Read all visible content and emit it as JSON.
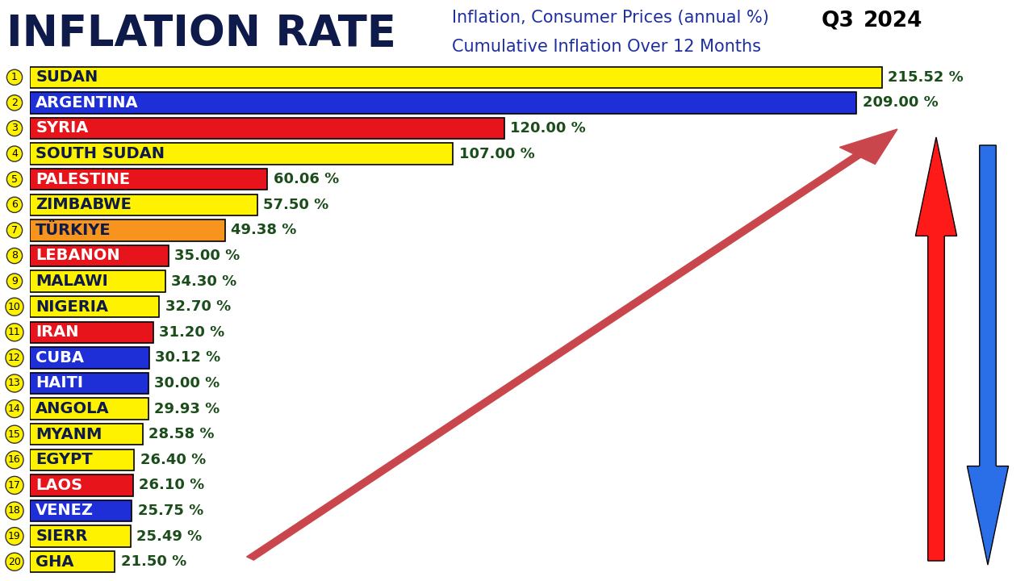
{
  "chart_data": {
    "type": "bar",
    "orientation": "horizontal",
    "title": "INFLATION RATE",
    "subtitle": [
      "Inflation, Consumer Prices (annual %)",
      "Cumulative Inflation Over 12 Months"
    ],
    "period": "Q3",
    "year": "2024",
    "ranks": [
      1,
      2,
      3,
      4,
      5,
      6,
      7,
      8,
      9,
      10,
      11,
      12,
      13,
      14,
      15,
      16,
      17,
      18,
      19,
      20
    ],
    "categories": [
      "SUDAN",
      "ARGENTINA",
      "SYRIA",
      "SOUTH SUDAN",
      "PALESTINE",
      "ZIMBABWE",
      "TÜRKIYE",
      "LEBANON",
      "MALAWI",
      "NIGERIA",
      "IRAN",
      "CUBA",
      "HAITI",
      "ANGOLA",
      "MYANM",
      "EGYPT",
      "LAOS",
      "VENEZ",
      "SIERR",
      "GHA"
    ],
    "values": [
      215.52,
      209.0,
      120.0,
      107.0,
      60.06,
      57.5,
      49.38,
      35.0,
      34.3,
      32.7,
      31.2,
      30.12,
      30.0,
      29.93,
      28.58,
      26.4,
      26.1,
      25.75,
      25.49,
      21.5
    ],
    "value_labels": [
      "215.52 %",
      "209.00 %",
      "120.00 %",
      "107.00 %",
      "60.06 %",
      "57.50 %",
      "49.38 %",
      "35.00 %",
      "34.30 %",
      "32.70 %",
      "31.20 %",
      "30.12 %",
      "30.00 %",
      "29.93 %",
      "28.58 %",
      "26.40 %",
      "26.10 %",
      "25.75 %",
      "25.49 %",
      "21.50 %"
    ],
    "colors": [
      "#fff200",
      "#1f2fd8",
      "#e8141b",
      "#fff200",
      "#e8141b",
      "#fff200",
      "#f7941d",
      "#e8141b",
      "#fff200",
      "#fff200",
      "#e8141b",
      "#1f2fd8",
      "#1f2fd8",
      "#fff200",
      "#fff200",
      "#fff200",
      "#e8141b",
      "#1f2fd8",
      "#fff200",
      "#fff200"
    ],
    "xlim": [
      0,
      250
    ],
    "data_labels": true,
    "tick_labels": false,
    "grid": false
  }
}
